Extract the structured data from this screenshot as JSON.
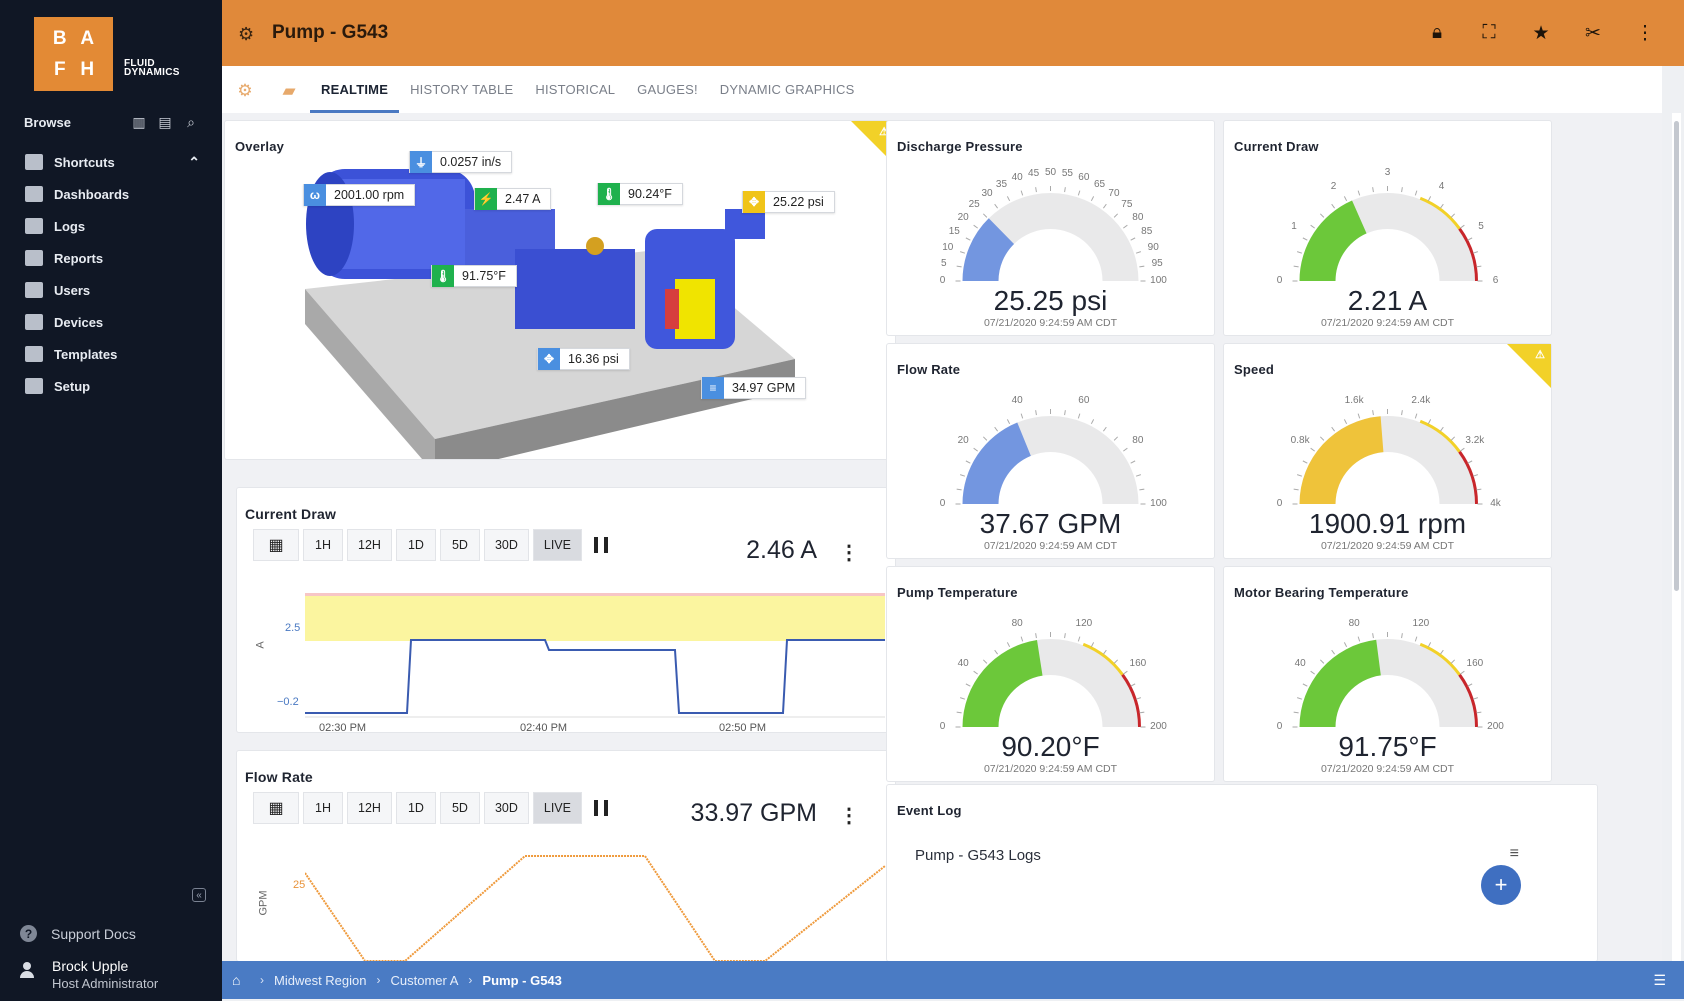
{
  "brand": {
    "letters": [
      "B",
      "A",
      "F",
      "H"
    ],
    "text_line1": "FLUID",
    "text_line2": "DYNAMICS"
  },
  "sidebar": {
    "browse_label": "Browse",
    "items": [
      {
        "label": "Shortcuts",
        "icon": "bookmark-icon"
      },
      {
        "label": "Dashboards",
        "icon": "dashboard-icon"
      },
      {
        "label": "Logs",
        "icon": "logs-icon"
      },
      {
        "label": "Reports",
        "icon": "reports-icon"
      },
      {
        "label": "Users",
        "icon": "users-icon"
      },
      {
        "label": "Devices",
        "icon": "devices-icon"
      },
      {
        "label": "Templates",
        "icon": "templates-icon"
      },
      {
        "label": "Setup",
        "icon": "setup-icon"
      }
    ],
    "support_label": "Support Docs",
    "user_name": "Brock Upple",
    "user_role": "Host Administrator"
  },
  "header": {
    "title": "Pump - G543"
  },
  "tabs": [
    "REALTIME",
    "HISTORY TABLE",
    "HISTORICAL",
    "GAUGES!",
    "DYNAMIC GRAPHICS"
  ],
  "overlay": {
    "title": "Overlay",
    "tags": {
      "vibration": "0.0257 in/s",
      "speed": "2001.00 rpm",
      "current": "2.47 A",
      "temp_right": "90.24°F",
      "pressure_top": "25.22 psi",
      "temp_left": "91.75°F",
      "pressure_bottom": "16.36 psi",
      "flow": "34.97 GPM"
    }
  },
  "trend_buttons": [
    "1H",
    "12H",
    "1D",
    "5D",
    "30D",
    "LIVE"
  ],
  "trends": {
    "current": {
      "title": "Current Draw",
      "value": "2.46 A",
      "ylabel": "A",
      "y_ticks": [
        "2.5",
        "−0.2"
      ],
      "x_ticks": [
        "02:30 PM",
        "02:40 PM",
        "02:50 PM"
      ]
    },
    "flow": {
      "title": "Flow Rate",
      "value": "33.97 GPM",
      "ylabel": "GPM",
      "y_ticks": [
        "25"
      ]
    }
  },
  "gauges": [
    {
      "title": "Discharge Pressure",
      "value": "25.25 psi",
      "timestamp": "07/21/2020 9:24:59 AM CDT",
      "fraction": 0.2525,
      "color": "#7396e0",
      "ticks": [
        "0",
        "5",
        "10",
        "15",
        "20",
        "25",
        "30",
        "35",
        "40",
        "45",
        "50",
        "55",
        "60",
        "65",
        "70",
        "75",
        "80",
        "85",
        "90",
        "95",
        "100"
      ],
      "alert": false
    },
    {
      "title": "Current Draw",
      "value": "2.21 A",
      "timestamp": "07/21/2020 9:24:59 AM CDT",
      "fraction": 0.368,
      "color": "#6cc83a",
      "ticks": [
        "0",
        "1",
        "2",
        "3",
        "4",
        "5",
        "6"
      ],
      "alert": false
    },
    {
      "title": "Flow Rate",
      "value": "37.67 GPM",
      "timestamp": "07/21/2020 9:24:59 AM CDT",
      "fraction": 0.3767,
      "color": "#7396e0",
      "ticks": [
        "0",
        "20",
        "40",
        "60",
        "80",
        "100"
      ],
      "alert": false
    },
    {
      "title": "Speed",
      "value": "1900.91 rpm",
      "timestamp": "07/21/2020 9:24:59 AM CDT",
      "fraction": 0.475,
      "color": "#efc33a",
      "ticks": [
        "0",
        "0.8k",
        "1.6k",
        "2.4k",
        "3.2k",
        "4k"
      ],
      "alert": true
    },
    {
      "title": "Pump Temperature",
      "value": "90.20°F",
      "timestamp": "07/21/2020 9:24:59 AM CDT",
      "fraction": 0.451,
      "color": "#6cc83a",
      "ticks": [
        "0",
        "40",
        "80",
        "120",
        "160",
        "200"
      ],
      "alert": false
    },
    {
      "title": "Motor Bearing Temperature",
      "value": "91.75°F",
      "timestamp": "07/21/2020 9:24:59 AM CDT",
      "fraction": 0.459,
      "color": "#6cc83a",
      "ticks": [
        "0",
        "40",
        "80",
        "120",
        "160",
        "200"
      ],
      "alert": false
    }
  ],
  "event_log": {
    "title": "Event Log",
    "subtitle": "Pump - G543 Logs"
  },
  "breadcrumb": [
    "Midwest Region",
    "Customer A",
    "Pump - G543"
  ],
  "colors": {
    "brand_orange": "#e0893a",
    "accent_blue": "#4a7bc4",
    "alert_yellow": "#f2d128",
    "danger_red": "#c8262b"
  }
}
